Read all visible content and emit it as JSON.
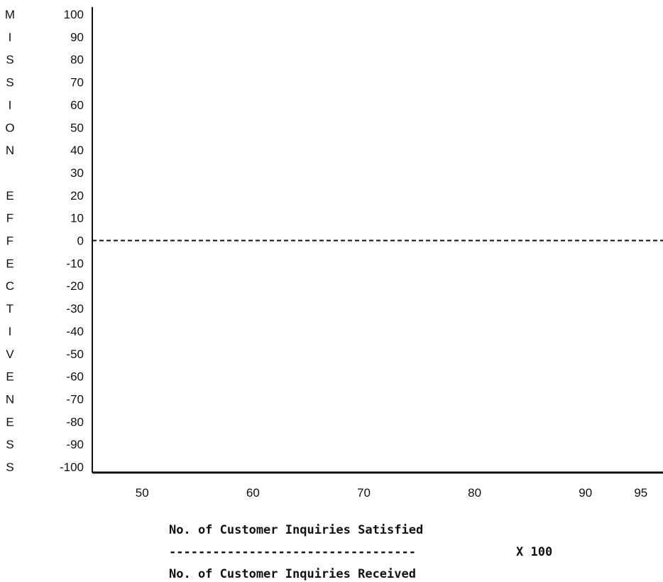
{
  "chart_data": {
    "type": "line",
    "ylabel": "MISSION EFFECTIVENESS",
    "ylabel_letters": [
      "M",
      "I",
      "S",
      "S",
      "I",
      "O",
      "N",
      "",
      "E",
      "F",
      "F",
      "E",
      "C",
      "T",
      "I",
      "V",
      "E",
      "N",
      "E",
      "S",
      "S"
    ],
    "y_ticks": [
      100,
      90,
      80,
      70,
      60,
      50,
      40,
      30,
      20,
      10,
      0,
      -10,
      -20,
      -30,
      -40,
      -50,
      -60,
      -70,
      -80,
      -90,
      -100
    ],
    "ylim": [
      -100,
      100
    ],
    "x_ticks": [
      50,
      60,
      70,
      80,
      90,
      95
    ],
    "xlim": [
      45.5,
      97
    ],
    "series": [
      {
        "style": "dashed",
        "x": [
          45.5,
          97
        ],
        "y": [
          0,
          0
        ]
      }
    ],
    "xlabel": {
      "numerator": "No. of Customer Inquiries Satisfied",
      "divider": "----------------------------------",
      "denominator": "No. of Customer Inquiries Received",
      "multiplier": "X 100"
    }
  }
}
